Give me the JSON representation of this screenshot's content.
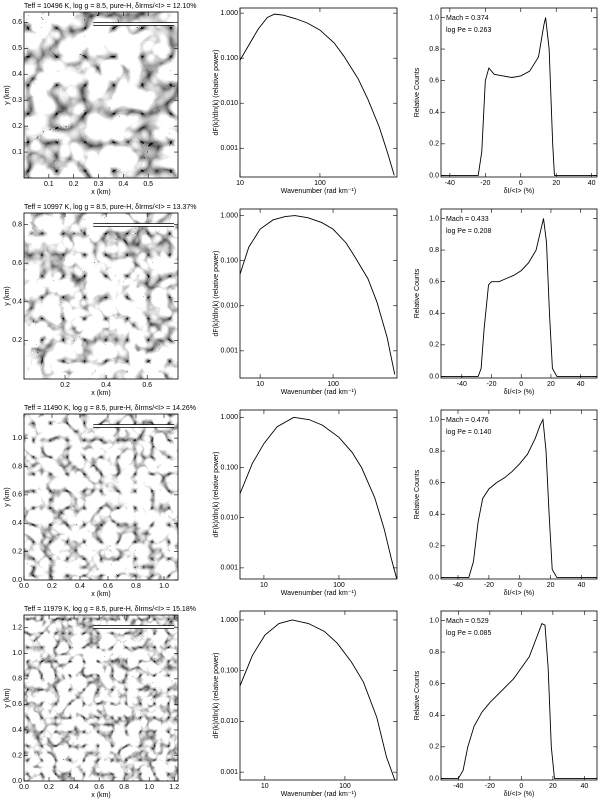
{
  "chart_data": [
    {
      "type": "image",
      "title": "Teff = 10496 K, log g = 8.5, pure-H, δIrms/<I> = 12.10%",
      "xlabel": "x (km)",
      "ylabel": "y (km)",
      "xlim": [
        0,
        0.62
      ],
      "ylim": [
        0,
        0.64
      ],
      "xticks": [
        0.1,
        0.2,
        0.3,
        0.4,
        0.5
      ],
      "yticks": [
        0.1,
        0.2,
        0.3,
        0.4,
        0.5,
        0.6
      ]
    },
    {
      "type": "line",
      "xlabel": "Wavenumber (rad km⁻¹)",
      "ylabel": "dF(k)/dln(k) (relative power)",
      "xlog": true,
      "ylog": true,
      "color": "#000000",
      "xlim": [
        10,
        920
      ],
      "ylim": [
        0.00023,
        1.3
      ],
      "xticks": [
        10,
        100
      ],
      "yticks": [
        {
          "value": 1,
          "label": "1.000"
        },
        {
          "value": 0.1,
          "label": "0.100"
        },
        {
          "value": 0.01,
          "label": "0.010"
        },
        {
          "value": 0.001,
          "label": "0.001"
        }
      ],
      "x": [
        10,
        13,
        17,
        22,
        27,
        35,
        50,
        70,
        100,
        150,
        200,
        300,
        400,
        550,
        700,
        850
      ],
      "values": [
        0.09,
        0.2,
        0.45,
        0.8,
        0.95,
        0.9,
        0.75,
        0.6,
        0.42,
        0.22,
        0.11,
        0.035,
        0.012,
        0.003,
        0.0008,
        0.00025
      ]
    },
    {
      "type": "line",
      "xlabel": "δI/<I> (%)",
      "ylabel": "Relative Counts",
      "annotations": [
        "Mach = 0.374",
        "log Pe = 0.263"
      ],
      "color": "#000000",
      "xlim": [
        -45,
        43
      ],
      "ylim": [
        -0.01,
        1.06
      ],
      "xticks": [
        -40,
        -20,
        0,
        20,
        40
      ],
      "yticks": [
        {
          "value": 0,
          "label": "0.0"
        },
        0.2,
        0.4,
        0.6,
        0.8,
        {
          "value": 1,
          "label": "1.0"
        }
      ],
      "x": [
        -45,
        -24,
        -22,
        -20,
        -18,
        -15,
        -10,
        -5,
        0,
        5,
        10,
        13,
        14,
        16,
        18,
        19,
        22,
        43
      ],
      "values": [
        0,
        0,
        0.15,
        0.6,
        0.68,
        0.64,
        0.63,
        0.62,
        0.63,
        0.66,
        0.75,
        0.95,
        1.0,
        0.8,
        0.2,
        0,
        0,
        0
      ]
    },
    {
      "type": "image",
      "title": "Teff = 10997 K, log g = 8.5, pure-H, δIrms/<I> = 13.37%",
      "xlabel": "x (km)",
      "ylabel": "y (km)",
      "xlim": [
        0,
        0.75
      ],
      "ylim": [
        0,
        0.86
      ],
      "xticks": [
        0.2,
        0.4,
        0.6
      ],
      "yticks": [
        0.2,
        0.4,
        0.6,
        0.8
      ]
    },
    {
      "type": "line",
      "xlabel": "Wavenumber (rad km⁻¹)",
      "ylabel": "dF(k)/dln(k) (relative power)",
      "xlog": true,
      "ylog": true,
      "color": "#000000",
      "xlim": [
        5.3,
        752
      ],
      "ylim": [
        0.00025,
        1.4
      ],
      "xticks": [
        10,
        100
      ],
      "yticks": [
        {
          "value": 1,
          "label": "1.000"
        },
        {
          "value": 0.1,
          "label": "0.100"
        },
        {
          "value": 0.01,
          "label": "0.010"
        },
        {
          "value": 0.001,
          "label": "0.001"
        }
      ],
      "x": [
        5.3,
        7,
        10,
        15,
        22,
        30,
        45,
        70,
        100,
        150,
        200,
        300,
        400,
        550,
        700
      ],
      "values": [
        0.05,
        0.2,
        0.5,
        0.8,
        0.95,
        1.0,
        0.9,
        0.7,
        0.5,
        0.25,
        0.12,
        0.04,
        0.012,
        0.002,
        0.0003
      ]
    },
    {
      "type": "line",
      "xlabel": "δI/<I> (%)",
      "ylabel": "Relative Counts",
      "annotations": [
        "Mach = 0.433",
        "log Pe = 0.208"
      ],
      "color": "#000000",
      "xlim": [
        -54,
        51
      ],
      "ylim": [
        -0.01,
        1.06
      ],
      "xticks": [
        -40,
        -20,
        0,
        20,
        40
      ],
      "yticks": [
        {
          "value": 0,
          "label": "0.0"
        },
        0.2,
        0.4,
        0.6,
        0.8,
        {
          "value": 1,
          "label": "1.0"
        }
      ],
      "x": [
        -54,
        -29,
        -27,
        -25,
        -22,
        -20,
        -15,
        -10,
        -5,
        0,
        5,
        10,
        13,
        15,
        17,
        19,
        21,
        24,
        51
      ],
      "values": [
        0,
        0,
        0.05,
        0.3,
        0.58,
        0.6,
        0.6,
        0.62,
        0.64,
        0.67,
        0.72,
        0.8,
        0.92,
        1.0,
        0.85,
        0.4,
        0.05,
        0,
        0
      ]
    },
    {
      "type": "image",
      "title": "Teff = 11490 K, log g = 8.5, pure-H, δIrms/<I> = 14.26%",
      "xlabel": "x (km)",
      "ylabel": "y (km)",
      "xlim": [
        0,
        1.1
      ],
      "ylim": [
        0,
        1.17
      ],
      "xticks": [
        {
          "value": 0,
          "label": "0.0"
        },
        0.2,
        0.4,
        0.6,
        0.8,
        {
          "value": 1,
          "label": "1.0"
        }
      ],
      "yticks": [
        {
          "value": 0,
          "label": "0.0"
        },
        0.2,
        0.4,
        0.6,
        0.8,
        {
          "value": 1,
          "label": "1.0"
        }
      ]
    },
    {
      "type": "line",
      "xlabel": "Wavenumber (rad km⁻¹)",
      "ylabel": "dF(k)/dln(k) (relative power)",
      "xlog": true,
      "ylog": true,
      "color": "#000000",
      "xlim": [
        4.8,
        594
      ],
      "ylim": [
        0.0006,
        1.4
      ],
      "xticks": [
        10,
        100
      ],
      "yticks": [
        {
          "value": 1,
          "label": "1.000"
        },
        {
          "value": 0.1,
          "label": "0.100"
        },
        {
          "value": 0.01,
          "label": "0.010"
        },
        {
          "value": 0.001,
          "label": "0.001"
        }
      ],
      "x": [
        4.8,
        7,
        10,
        15,
        25,
        40,
        60,
        100,
        150,
        200,
        300,
        400,
        500,
        590
      ],
      "values": [
        0.03,
        0.12,
        0.3,
        0.65,
        1.0,
        0.9,
        0.7,
        0.4,
        0.2,
        0.1,
        0.025,
        0.006,
        0.0015,
        0.0006
      ]
    },
    {
      "type": "line",
      "xlabel": "δI/<I> (%)",
      "ylabel": "Relative Counts",
      "annotations": [
        "Mach = 0.476",
        "log Pe = 0.140"
      ],
      "color": "#000000",
      "xlim": [
        -51,
        50
      ],
      "ylim": [
        -0.01,
        1.06
      ],
      "xticks": [
        -40,
        -20,
        0,
        20,
        40
      ],
      "yticks": [
        {
          "value": 0,
          "label": "0.0"
        },
        0.2,
        0.4,
        0.6,
        0.8,
        {
          "value": 1,
          "label": "1.0"
        }
      ],
      "x": [
        -51,
        -33,
        -30,
        -27,
        -24,
        -20,
        -15,
        -10,
        -5,
        0,
        5,
        10,
        13,
        15,
        17,
        19,
        21,
        24,
        50
      ],
      "values": [
        0,
        0,
        0.1,
        0.35,
        0.5,
        0.56,
        0.6,
        0.63,
        0.67,
        0.72,
        0.78,
        0.88,
        0.96,
        1.0,
        0.8,
        0.4,
        0.05,
        0,
        0
      ]
    },
    {
      "type": "image",
      "title": "Teff = 11979 K, log g = 8.5, pure-H, δIrms/<I> = 15.18%",
      "xlabel": "x (km)",
      "ylabel": "y (km)",
      "xlim": [
        0,
        1.23
      ],
      "ylim": [
        0,
        1.3
      ],
      "xticks": [
        {
          "value": 0,
          "label": "0.0"
        },
        0.2,
        0.4,
        0.6,
        0.8,
        {
          "value": 1,
          "label": "1.0"
        },
        1.2
      ],
      "yticks": [
        {
          "value": 0,
          "label": "0.0"
        },
        0.2,
        0.4,
        0.6,
        0.8,
        {
          "value": 1,
          "label": "1.0"
        },
        1.2
      ]
    },
    {
      "type": "line",
      "xlabel": "Wavenumber (rad km⁻¹)",
      "ylabel": "dF(k)/dln(k) (relative power)",
      "xlog": true,
      "ylog": true,
      "color": "#000000",
      "xlim": [
        4.9,
        447
      ],
      "ylim": [
        0.0007,
        1.5
      ],
      "xticks": [
        10,
        100
      ],
      "yticks": [
        {
          "value": 1,
          "label": "1.000"
        },
        {
          "value": 0.1,
          "label": "0.100"
        },
        {
          "value": 0.01,
          "label": "0.010"
        },
        {
          "value": 0.001,
          "label": "0.001"
        }
      ],
      "x": [
        4.9,
        7,
        10,
        15,
        22,
        35,
        55,
        80,
        120,
        170,
        250,
        330,
        420
      ],
      "values": [
        0.05,
        0.2,
        0.5,
        0.85,
        1.0,
        0.85,
        0.6,
        0.35,
        0.15,
        0.06,
        0.012,
        0.002,
        0.0007
      ]
    },
    {
      "type": "line",
      "xlabel": "δI/<I> (%)",
      "ylabel": "Relative Counts",
      "annotations": [
        "Mach = 0.529",
        "log Pe = 0.085"
      ],
      "color": "#000000",
      "xlim": [
        -51,
        48
      ],
      "ylim": [
        -0.01,
        1.06
      ],
      "xticks": [
        -40,
        -20,
        0,
        20,
        40
      ],
      "yticks": [
        {
          "value": 0,
          "label": "0.0"
        },
        0.2,
        0.4,
        0.6,
        0.8,
        {
          "value": 1,
          "label": "1.0"
        }
      ],
      "x": [
        -51,
        -40,
        -37,
        -34,
        -30,
        -25,
        -20,
        -15,
        -10,
        -5,
        0,
        5,
        10,
        13,
        15,
        17,
        19,
        21,
        48
      ],
      "values": [
        0,
        0,
        0.05,
        0.2,
        0.33,
        0.42,
        0.48,
        0.53,
        0.58,
        0.63,
        0.7,
        0.77,
        0.9,
        0.98,
        0.97,
        0.7,
        0.2,
        0,
        0
      ]
    }
  ]
}
